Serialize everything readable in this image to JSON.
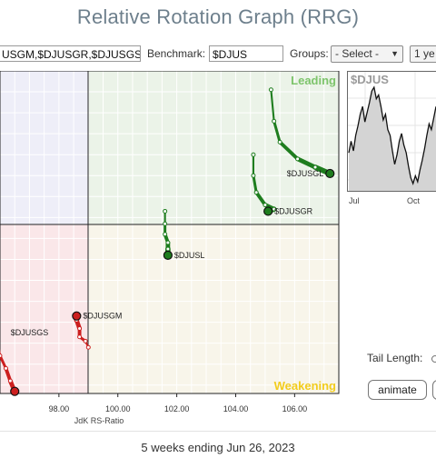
{
  "app": {
    "title": "Relative Rotation Graph (RRG)"
  },
  "toolbar": {
    "symbols_value": "USGM,$DJUSGR,$DJUSGS",
    "benchmark_label": "Benchmark:",
    "benchmark_value": "$DJUS",
    "groups_label": "Groups:",
    "groups_value": "- Select -",
    "period_value": "1 ye"
  },
  "chart_data": {
    "type": "scatter",
    "xlabel": "JdK RS-Ratio",
    "x_ticks": [
      "98.00",
      "100.00",
      "102.00",
      "104.00",
      "106.00"
    ],
    "xlim": [
      96.0,
      107.5
    ],
    "ylim": [
      96.3,
      104.0
    ],
    "quadrants": [
      {
        "name": "Leading",
        "color": "#7dc46b"
      },
      {
        "name": "Weakening",
        "color": "#f2cc1d"
      }
    ],
    "series": [
      {
        "name": "$DJUSGL",
        "color": "#1e7d1e",
        "points": [
          [
            105.2,
            103.55
          ],
          [
            105.3,
            102.8
          ],
          [
            105.5,
            102.3
          ],
          [
            106.1,
            101.9
          ],
          [
            106.7,
            101.7
          ],
          [
            107.2,
            101.55
          ]
        ]
      },
      {
        "name": "$DJUSGR",
        "color": "#1e7d1e",
        "points": [
          [
            104.6,
            102.0
          ],
          [
            104.6,
            101.5
          ],
          [
            104.7,
            101.1
          ],
          [
            105.0,
            100.8
          ],
          [
            105.3,
            100.7
          ],
          [
            105.1,
            100.65
          ]
        ]
      },
      {
        "name": "$DJUSL",
        "color": "#1e7d1e",
        "points": [
          [
            101.6,
            100.65
          ],
          [
            101.6,
            100.35
          ],
          [
            101.6,
            100.1
          ],
          [
            101.7,
            99.9
          ],
          [
            101.7,
            99.75
          ],
          [
            101.7,
            99.6
          ]
        ]
      },
      {
        "name": "$DJUSGM",
        "color": "#cc1f1f",
        "points": [
          [
            99.0,
            97.4
          ],
          [
            98.9,
            97.55
          ],
          [
            98.7,
            97.65
          ],
          [
            98.7,
            97.85
          ],
          [
            98.6,
            98.05
          ],
          [
            98.6,
            98.15
          ]
        ]
      },
      {
        "name": "$DJUSGS",
        "color": "#cc1f1f",
        "points": [
          [
            95.9,
            97.7
          ],
          [
            96.0,
            97.2
          ],
          [
            96.2,
            96.9
          ],
          [
            96.35,
            96.6
          ],
          [
            96.5,
            96.35
          ]
        ]
      }
    ]
  },
  "benchmark_chart": {
    "symbol": "$DJUS",
    "x_ticks": [
      "Jul",
      "Oct"
    ],
    "values": [
      46,
      52,
      47,
      55,
      60,
      66,
      70,
      62,
      67,
      72,
      78,
      80,
      74,
      76,
      70,
      63,
      66,
      58,
      55,
      47,
      40,
      45,
      52,
      56,
      50,
      46,
      39,
      33,
      30,
      34,
      31,
      37,
      42,
      48,
      55,
      61,
      58,
      64,
      70
    ]
  },
  "controls": {
    "tail_length_label": "Tail Length:",
    "animate_label": "animate"
  },
  "footer": {
    "text": "5 weeks ending Jun 26, 2023"
  }
}
